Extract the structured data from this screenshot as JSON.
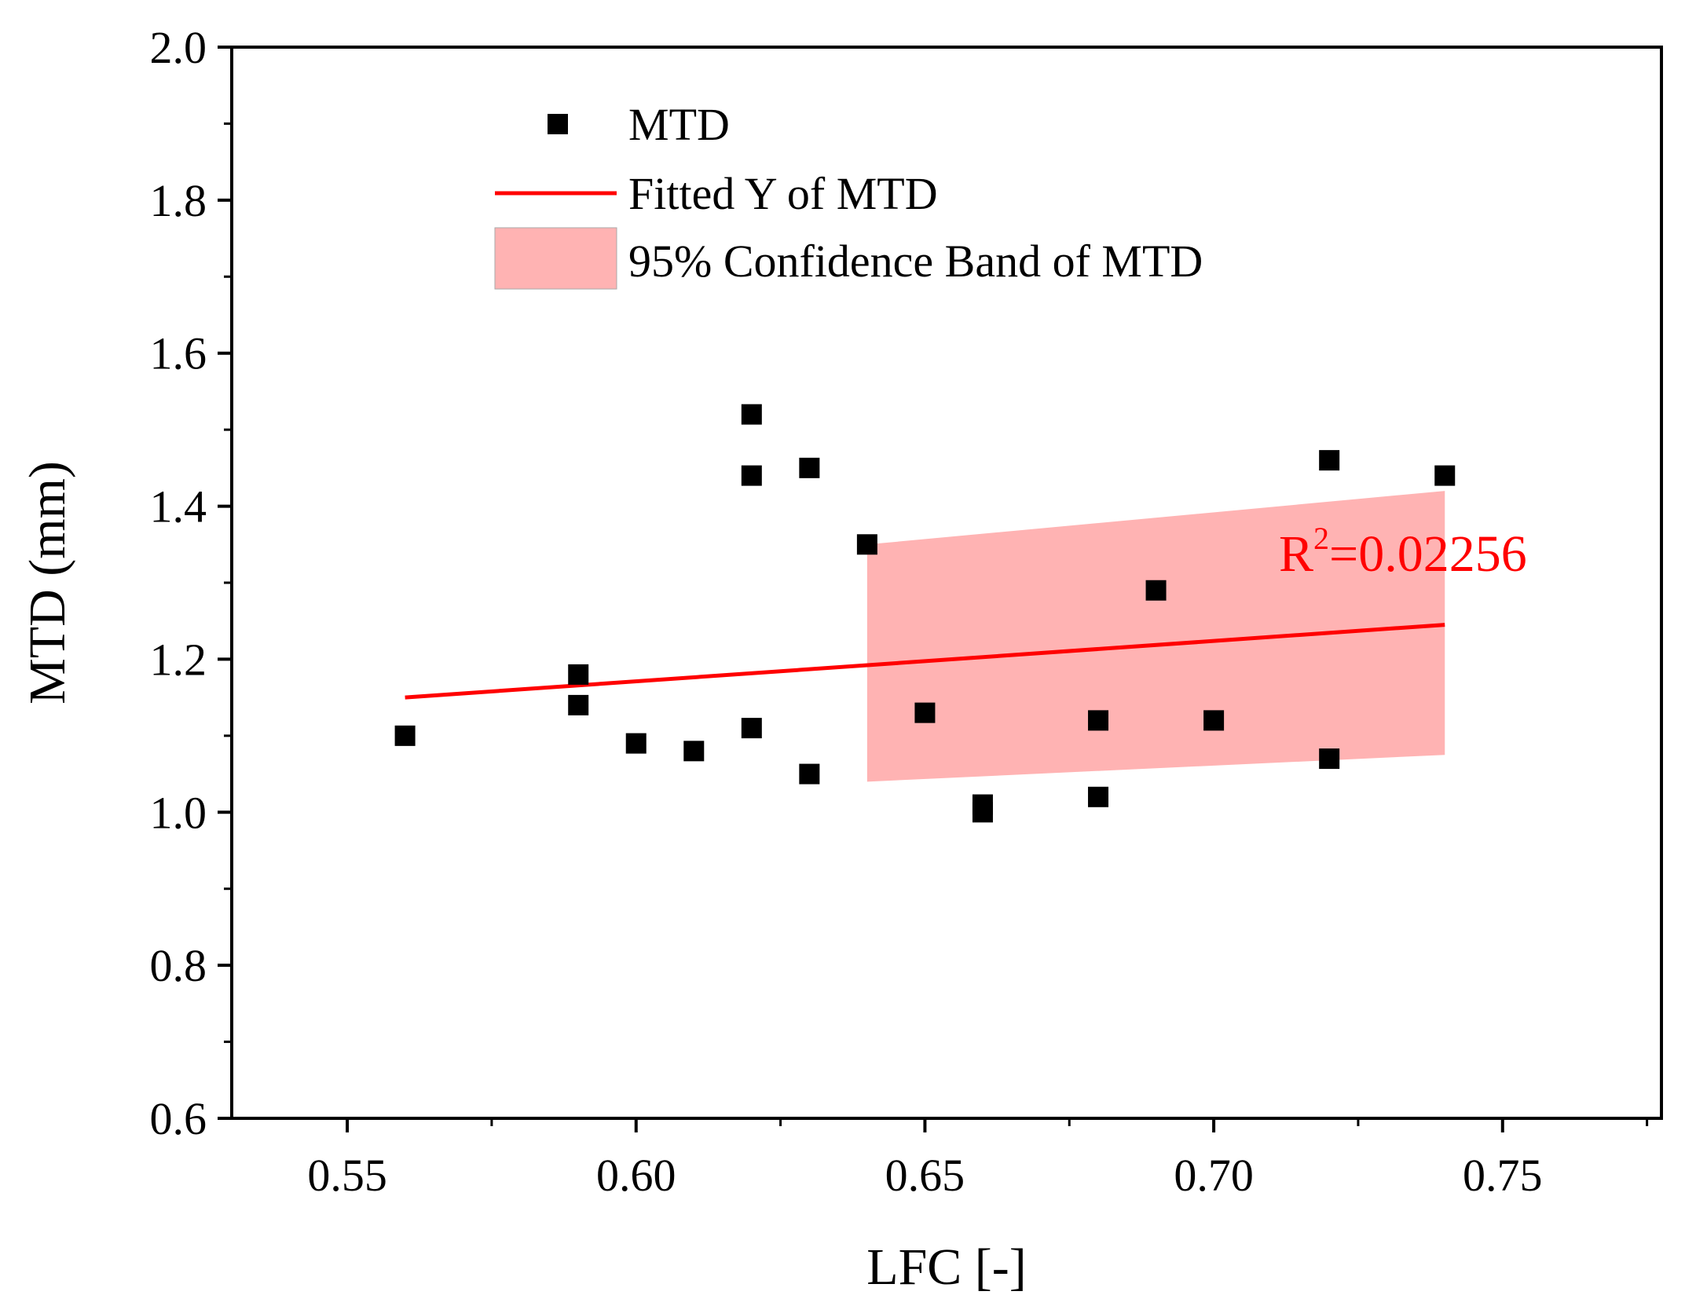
{
  "chart_data": {
    "type": "scatter",
    "title": "",
    "xlabel": "LFC [-]",
    "ylabel": "MTD (mm)",
    "xlim": [
      0.53,
      0.7775
    ],
    "ylim": [
      0.6,
      2.0
    ],
    "xticks": [
      0.55,
      0.6,
      0.65,
      0.7,
      0.75
    ],
    "xtick_labels": [
      "0.55",
      "0.60",
      "0.65",
      "0.70",
      "0.75"
    ],
    "yticks": [
      0.6,
      0.8,
      1.0,
      1.2,
      1.4,
      1.6,
      1.8,
      2.0
    ],
    "ytick_labels": [
      "0.6",
      "0.8",
      "1.0",
      "1.2",
      "1.4",
      "1.6",
      "1.8",
      "2.0"
    ],
    "grid": false,
    "legend_position": "top-left",
    "series": [
      {
        "name": "MTD",
        "kind": "scatter",
        "color": "#000000",
        "points": [
          {
            "x": 0.56,
            "y": 1.1
          },
          {
            "x": 0.59,
            "y": 1.18
          },
          {
            "x": 0.59,
            "y": 1.14
          },
          {
            "x": 0.6,
            "y": 1.09
          },
          {
            "x": 0.61,
            "y": 1.08
          },
          {
            "x": 0.62,
            "y": 1.52
          },
          {
            "x": 0.62,
            "y": 1.44
          },
          {
            "x": 0.62,
            "y": 1.11
          },
          {
            "x": 0.63,
            "y": 1.45
          },
          {
            "x": 0.63,
            "y": 1.05
          },
          {
            "x": 0.64,
            "y": 1.35
          },
          {
            "x": 0.65,
            "y": 1.13
          },
          {
            "x": 0.66,
            "y": 1.01
          },
          {
            "x": 0.66,
            "y": 1.0
          },
          {
            "x": 0.68,
            "y": 1.12
          },
          {
            "x": 0.68,
            "y": 1.02
          },
          {
            "x": 0.69,
            "y": 1.29
          },
          {
            "x": 0.7,
            "y": 1.12
          },
          {
            "x": 0.72,
            "y": 1.46
          },
          {
            "x": 0.72,
            "y": 1.07
          },
          {
            "x": 0.74,
            "y": 1.44
          }
        ]
      },
      {
        "name": "Fitted Y of MTD",
        "kind": "line",
        "color": "#ff0000",
        "points": [
          {
            "x": 0.56,
            "y": 1.15
          },
          {
            "x": 0.74,
            "y": 1.245
          }
        ]
      },
      {
        "name": "95% Confidence Band of MTD",
        "kind": "band",
        "color": "#ffb3b3",
        "x": [
          0.64,
          0.74
        ],
        "upper": [
          1.35,
          1.42
        ],
        "lower": [
          1.04,
          1.075
        ]
      }
    ],
    "annotations": [
      {
        "text_base": "R",
        "superscript": "2",
        "text_rest": "=0.02256",
        "x": 0.7125,
        "y": 1.325,
        "color": "#ff0000"
      }
    ]
  }
}
